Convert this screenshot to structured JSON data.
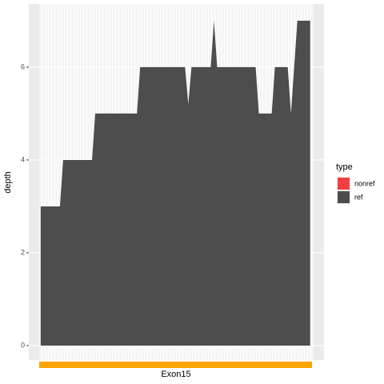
{
  "chart_data": {
    "type": "area",
    "y_label": "depth",
    "x": [
      0,
      6,
      7,
      16,
      17,
      30,
      31,
      45,
      46,
      47,
      53,
      54,
      55,
      67,
      68,
      72,
      73,
      77,
      78,
      80,
      84
    ],
    "series": [
      {
        "name": "ref",
        "color": "#4d4d4d",
        "values": [
          3,
          3,
          4,
          4,
          5,
          5,
          6,
          6,
          5.2,
          6,
          6,
          7,
          6,
          6,
          5,
          5,
          6,
          6,
          5,
          7,
          7
        ]
      }
    ],
    "xlim": [
      -3.7,
      88.3
    ],
    "ylim": [
      -0.31,
      7.36
    ],
    "yticks": [
      0,
      2,
      4,
      6
    ],
    "grid": true,
    "legend": {
      "title": "type",
      "position": "right",
      "items": [
        {
          "name": "nonref",
          "color": "#f04040"
        },
        {
          "name": "ref",
          "color": "#4d4d4d"
        }
      ]
    },
    "track": {
      "label": "Exon15",
      "color": "#ffa500"
    }
  }
}
